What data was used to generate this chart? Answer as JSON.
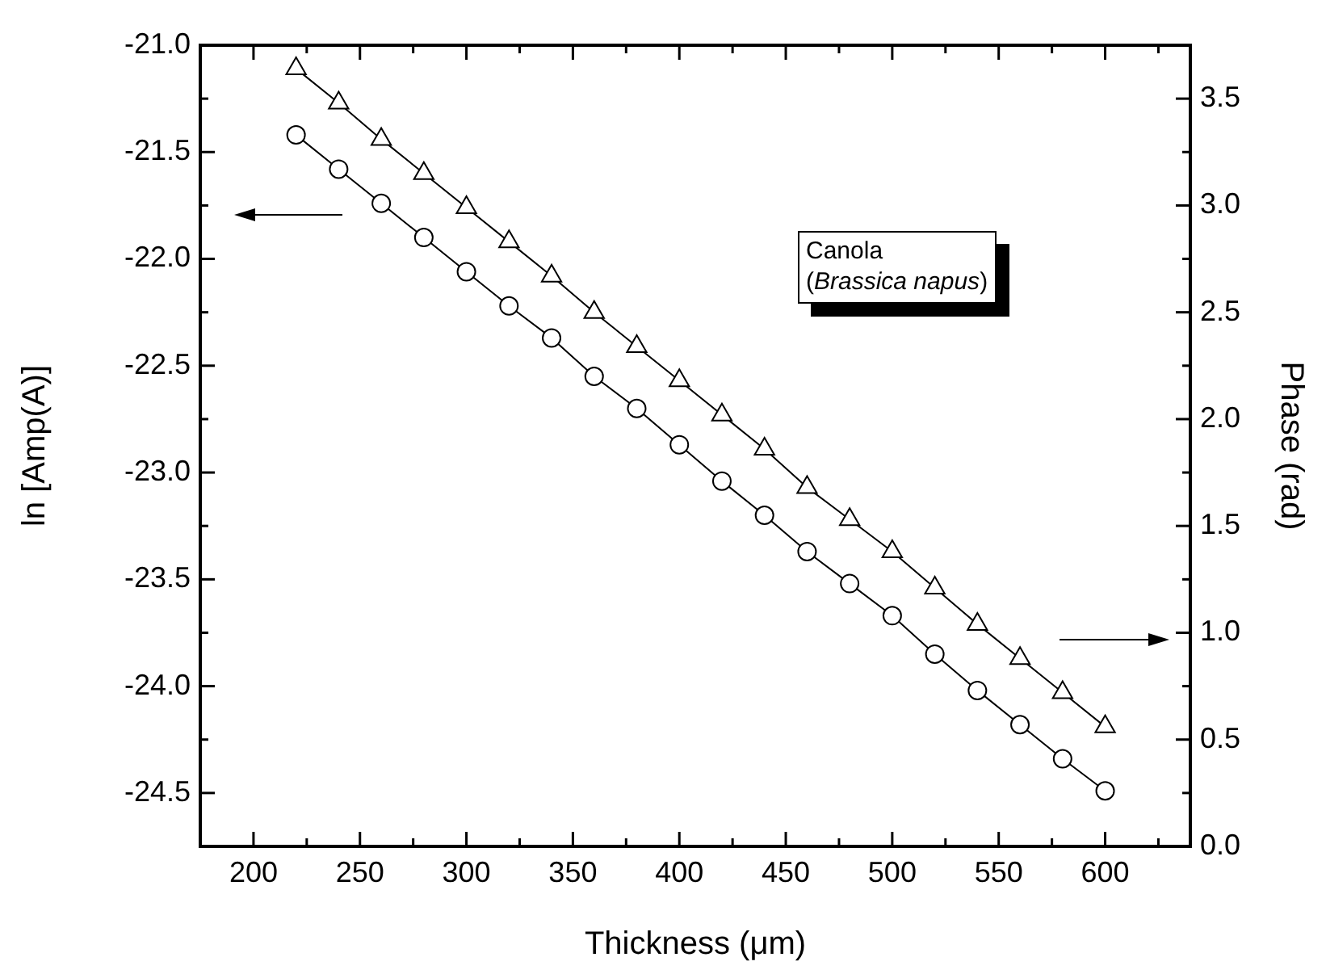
{
  "chart_data": {
    "type": "line",
    "xlabel": "Thickness (μm)",
    "ylabel": "ln [Amp(A)]",
    "y2label": "Phase (rad)",
    "x": [
      220,
      240,
      260,
      280,
      300,
      320,
      340,
      360,
      380,
      400,
      420,
      440,
      460,
      480,
      500,
      520,
      540,
      560,
      580,
      600
    ],
    "series": [
      {
        "color": "#000000",
        "marker": "circle",
        "axis": "y",
        "values": [
          -21.42,
          -21.58,
          -21.74,
          -21.9,
          -22.06,
          -22.22,
          -22.37,
          -22.55,
          -22.7,
          -22.87,
          -23.04,
          -23.2,
          -23.37,
          -23.52,
          -23.67,
          -23.85,
          -24.02,
          -24.18,
          -24.34,
          -24.49
        ]
      },
      {
        "color": "#000000",
        "marker": "triangle",
        "axis": "y2",
        "values": [
          3.64,
          3.48,
          3.31,
          3.15,
          2.99,
          2.83,
          2.67,
          2.5,
          2.34,
          2.18,
          2.02,
          1.86,
          1.68,
          1.53,
          1.38,
          1.21,
          1.04,
          0.88,
          0.72,
          0.56
        ]
      }
    ],
    "xlim": [
      175,
      640
    ],
    "xticks": [
      {
        "value": 175,
        "label": null
      },
      200,
      {
        "value": 225,
        "label": null
      },
      250,
      {
        "value": 275,
        "label": null
      },
      300,
      {
        "value": 325,
        "label": null
      },
      350,
      {
        "value": 375,
        "label": null
      },
      400,
      {
        "value": 425,
        "label": null
      },
      450,
      {
        "value": 475,
        "label": null
      },
      500,
      {
        "value": 525,
        "label": null
      },
      550,
      {
        "value": 575,
        "label": null
      },
      600,
      {
        "value": 625,
        "label": null
      }
    ],
    "ylim": [
      -24.75,
      -21.0
    ],
    "yticks": [
      {
        "value": -24.75,
        "label": null
      },
      {
        "value": -24.5,
        "label": "-24.5"
      },
      {
        "value": -24.25,
        "label": null
      },
      {
        "value": -24.0,
        "label": "-24.0"
      },
      {
        "value": -23.75,
        "label": null
      },
      {
        "value": -23.5,
        "label": "-23.5"
      },
      {
        "value": -23.25,
        "label": null
      },
      {
        "value": -23.0,
        "label": "-23.0"
      },
      {
        "value": -22.75,
        "label": null
      },
      {
        "value": -22.5,
        "label": "-22.5"
      },
      {
        "value": -22.25,
        "label": null
      },
      {
        "value": -22.0,
        "label": "-22.0"
      },
      {
        "value": -21.75,
        "label": null
      },
      {
        "value": -21.5,
        "label": "-21.5"
      },
      {
        "value": -21.25,
        "label": null
      },
      {
        "value": -21.0,
        "label": "-21.0"
      }
    ],
    "y2lim": [
      0,
      3.75
    ],
    "y2ticks": [
      {
        "value": 0,
        "label": "0.0"
      },
      {
        "value": 0.25,
        "label": null
      },
      {
        "value": 0.5,
        "label": "0.5"
      },
      {
        "value": 0.75,
        "label": null
      },
      {
        "value": 1.0,
        "label": "1.0"
      },
      {
        "value": 1.25,
        "label": null
      },
      {
        "value": 1.5,
        "label": "1.5"
      },
      {
        "value": 1.75,
        "label": null
      },
      {
        "value": 2.0,
        "label": "2.0"
      },
      {
        "value": 2.25,
        "label": null
      },
      {
        "value": 2.5,
        "label": "2.5"
      },
      {
        "value": 2.75,
        "label": null
      },
      {
        "value": 3.0,
        "label": "3.0"
      },
      {
        "value": 3.25,
        "label": null
      },
      {
        "value": 3.5,
        "label": "3.5"
      }
    ],
    "annotations": [
      "Canola\n(Brassica napus)"
    ],
    "grid": false,
    "legend": false,
    "line_style": "solid"
  }
}
